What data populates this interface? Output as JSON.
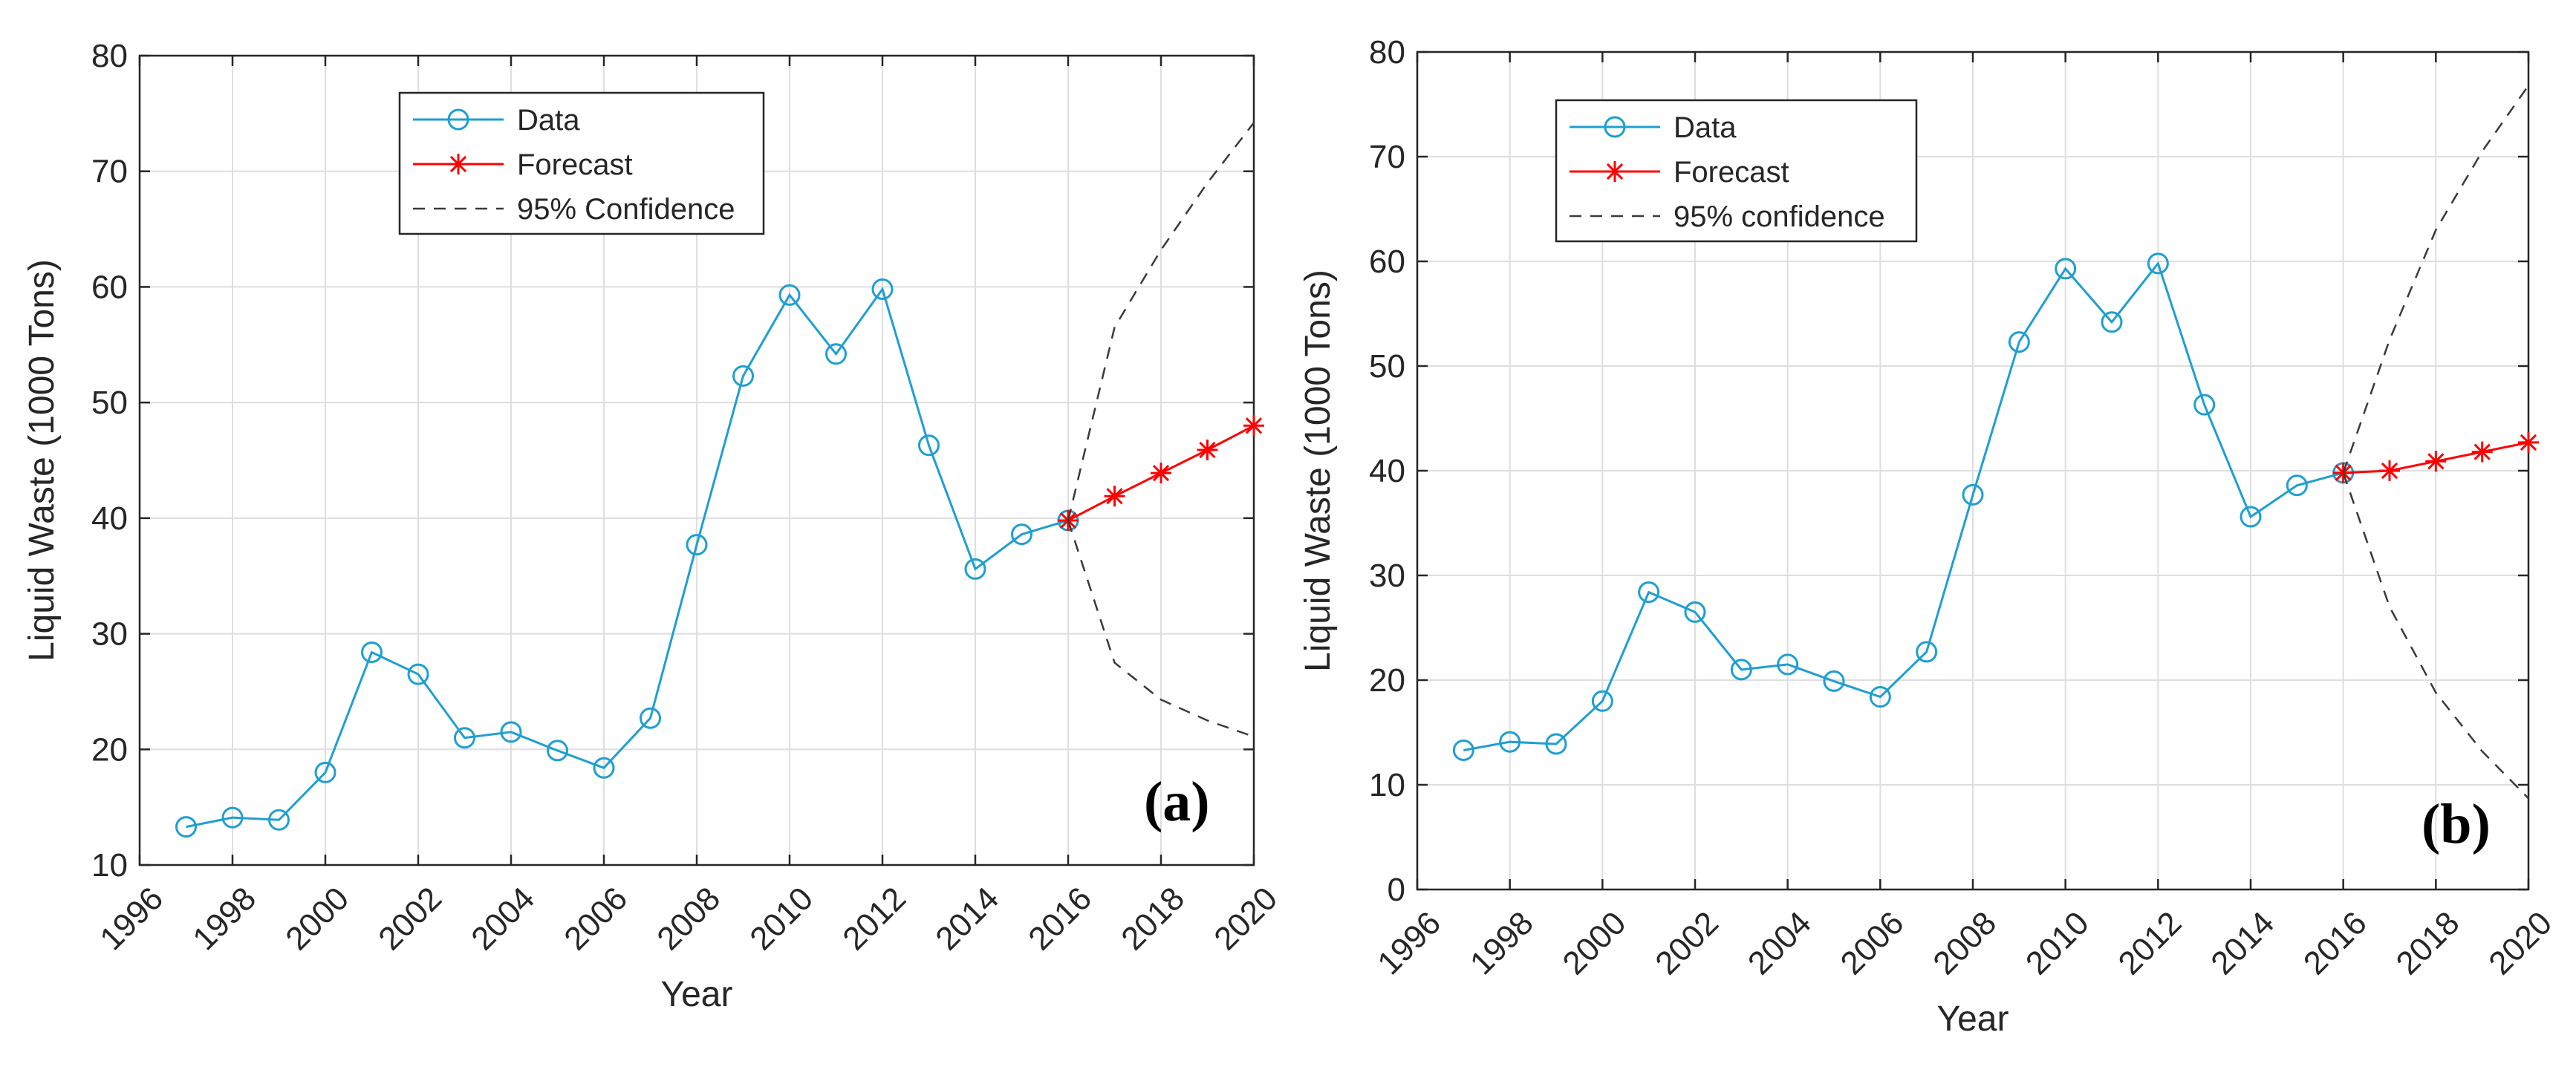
{
  "colors": {
    "data": "#1f9fd1",
    "forecast": "#ff0000",
    "confidence": "#3a3a3a",
    "grid": "#dedede",
    "axis": "#262626"
  },
  "chart_data": [
    {
      "type": "line",
      "panel_label": "(a)",
      "xlabel": "Year",
      "ylabel": "Liquid Waste (1000 Tons)",
      "xlim": [
        1996,
        2020
      ],
      "ylim": [
        10,
        80
      ],
      "xticks": [
        1996,
        1998,
        2000,
        2002,
        2004,
        2006,
        2008,
        2010,
        2012,
        2014,
        2016,
        2018,
        2020
      ],
      "yticks": [
        10,
        20,
        30,
        40,
        50,
        60,
        70,
        80
      ],
      "grid": true,
      "legend_position": "top-center",
      "series": [
        {
          "name": "Data",
          "marker": "circle",
          "x": [
            1997,
            1998,
            1999,
            2000,
            2001,
            2002,
            2003,
            2004,
            2005,
            2006,
            2007,
            2008,
            2009,
            2010,
            2011,
            2012,
            2013,
            2014,
            2015,
            2016
          ],
          "values": [
            13.3,
            14.1,
            13.9,
            18.0,
            28.4,
            26.5,
            21.0,
            21.5,
            19.9,
            18.4,
            22.7,
            37.7,
            52.3,
            59.3,
            54.2,
            59.8,
            46.3,
            35.6,
            38.6,
            39.8
          ]
        },
        {
          "name": "Forecast",
          "marker": "asterisk",
          "x": [
            2016,
            2017,
            2018,
            2019,
            2020
          ],
          "values": [
            39.8,
            41.9,
            43.9,
            45.9,
            48.0
          ]
        },
        {
          "name": "95% Confidence",
          "marker": "none",
          "dashed": true,
          "x": [
            2016,
            2017,
            2018,
            2019,
            2020
          ],
          "upper": [
            39.8,
            56.5,
            63.2,
            69.0,
            74.2
          ],
          "lower": [
            39.8,
            27.5,
            24.3,
            22.5,
            21.1
          ]
        }
      ]
    },
    {
      "type": "line",
      "panel_label": "(b)",
      "xlabel": "Year",
      "ylabel": "Liquid Waste (1000 Tons)",
      "xlim": [
        1996,
        2020
      ],
      "ylim": [
        0,
        80
      ],
      "xticks": [
        1996,
        1998,
        2000,
        2002,
        2004,
        2006,
        2008,
        2010,
        2012,
        2014,
        2016,
        2018,
        2020
      ],
      "yticks": [
        0,
        10,
        20,
        30,
        40,
        50,
        60,
        70,
        80
      ],
      "grid": true,
      "legend_position": "top-left",
      "series": [
        {
          "name": "Data",
          "marker": "circle",
          "x": [
            1997,
            1998,
            1999,
            2000,
            2001,
            2002,
            2003,
            2004,
            2005,
            2006,
            2007,
            2008,
            2009,
            2010,
            2011,
            2012,
            2013,
            2014,
            2015,
            2016
          ],
          "values": [
            13.3,
            14.1,
            13.9,
            18.0,
            28.4,
            26.5,
            21.0,
            21.5,
            19.9,
            18.4,
            22.7,
            37.7,
            52.3,
            59.3,
            54.2,
            59.8,
            46.3,
            35.6,
            38.6,
            39.8
          ]
        },
        {
          "name": "Forecast",
          "marker": "asterisk",
          "x": [
            2016,
            2017,
            2018,
            2019,
            2020
          ],
          "values": [
            39.8,
            40.0,
            40.9,
            41.8,
            42.7
          ]
        },
        {
          "name": "95% confidence",
          "marker": "none",
          "dashed": true,
          "x": [
            2016,
            2017,
            2018,
            2019,
            2020
          ],
          "upper": [
            39.8,
            52.5,
            63.0,
            70.5,
            76.8
          ],
          "lower": [
            39.8,
            27.0,
            18.8,
            13.2,
            8.7
          ]
        }
      ]
    }
  ]
}
